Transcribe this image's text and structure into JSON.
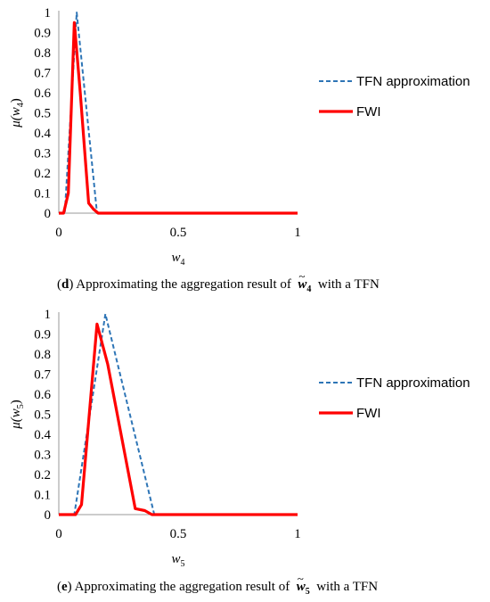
{
  "chart_data": [
    {
      "type": "line",
      "panel_letter": "d",
      "caption_prefix": ") Approximating the aggregation result of",
      "caption_var": "w",
      "caption_sub": "4",
      "caption_suffix": "with a TFN",
      "xlabel_var": "w",
      "xlabel_sub": "4",
      "ylabel_func": "μ(",
      "ylabel_var": "w",
      "ylabel_sub": "4",
      "ylabel_close": ")",
      "xlim": [
        0,
        1
      ],
      "ylim": [
        0,
        1
      ],
      "x_ticks": [
        "0",
        "0.5",
        "1"
      ],
      "y_ticks": [
        "0",
        "0.1",
        "0.2",
        "0.3",
        "0.4",
        "0.5",
        "0.6",
        "0.7",
        "0.8",
        "0.9",
        "1"
      ],
      "legend_position": "right",
      "series": [
        {
          "name": "TFN approximation",
          "style": "dashed",
          "color": "#2E75B6",
          "x": [
            0,
            0.025,
            0.075,
            0.16,
            0.2,
            1
          ],
          "y": [
            0,
            0,
            1,
            0,
            0,
            0
          ]
        },
        {
          "name": "FWI",
          "style": "solid",
          "color": "#FF0000",
          "x": [
            0,
            0.02,
            0.04,
            0.065,
            0.09,
            0.125,
            0.145,
            0.165,
            0.2,
            1
          ],
          "y": [
            0,
            0,
            0.1,
            0.95,
            0.6,
            0.05,
            0.02,
            0,
            0,
            0
          ]
        }
      ]
    },
    {
      "type": "line",
      "panel_letter": "e",
      "caption_prefix": ") Approximating the aggregation result of",
      "caption_var": "w",
      "caption_sub": "5",
      "caption_suffix": "with a TFN",
      "xlabel_var": "w",
      "xlabel_sub": "5",
      "ylabel_func": "μ(",
      "ylabel_var": "w",
      "ylabel_sub": "5",
      "ylabel_close": ")",
      "xlim": [
        0,
        1
      ],
      "ylim": [
        0,
        1
      ],
      "x_ticks": [
        "0",
        "0.5",
        "1"
      ],
      "y_ticks": [
        "0",
        "0.1",
        "0.2",
        "0.3",
        "0.4",
        "0.5",
        "0.6",
        "0.7",
        "0.8",
        "0.9",
        "1"
      ],
      "legend_position": "right",
      "series": [
        {
          "name": "TFN approximation",
          "style": "dashed",
          "color": "#2E75B6",
          "x": [
            0,
            0.065,
            0.195,
            0.4,
            0.45,
            1
          ],
          "y": [
            0,
            0,
            1,
            0,
            0,
            0
          ]
        },
        {
          "name": "FWI",
          "style": "solid",
          "color": "#FF0000",
          "x": [
            0,
            0.07,
            0.095,
            0.16,
            0.205,
            0.32,
            0.36,
            0.39,
            0.45,
            1
          ],
          "y": [
            0,
            0,
            0.05,
            0.95,
            0.75,
            0.03,
            0.02,
            0,
            0,
            0
          ]
        }
      ]
    }
  ]
}
